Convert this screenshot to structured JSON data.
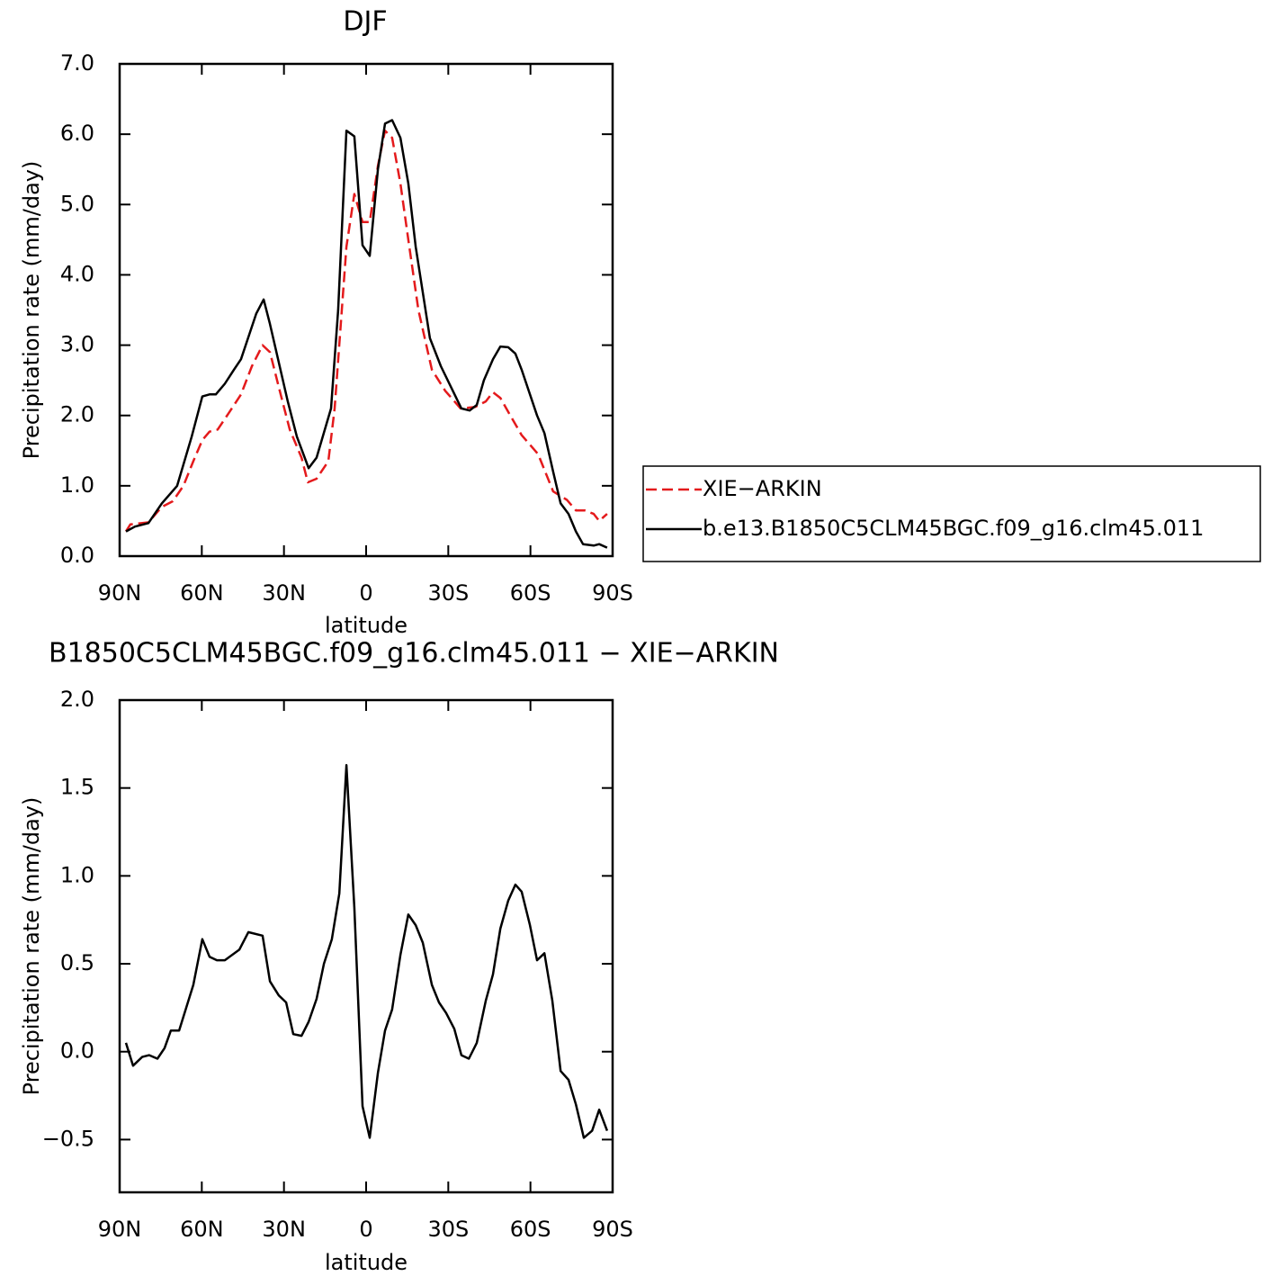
{
  "chart_data": [
    {
      "type": "line",
      "title": "DJF",
      "xlabel": "latitude",
      "ylabel": "Precipitation rate (mm/day)",
      "xlim": [
        90,
        -90
      ],
      "ylim": [
        0,
        7
      ],
      "xticks": [
        {
          "value": 90,
          "label": "90N"
        },
        {
          "value": 60,
          "label": "60N"
        },
        {
          "value": 30,
          "label": "30N"
        },
        0,
        {
          "value": -30,
          "label": "30S"
        },
        {
          "value": -60,
          "label": "60S"
        },
        {
          "value": -90,
          "label": "90S"
        }
      ],
      "yticks": [
        {
          "value": 0,
          "label": "0.0"
        },
        {
          "value": 1,
          "label": "1.0"
        },
        {
          "value": 2,
          "label": "2.0"
        },
        {
          "value": 3,
          "label": "3.0"
        },
        {
          "value": 4,
          "label": "4.0"
        },
        {
          "value": 5,
          "label": "5.0"
        },
        {
          "value": 6,
          "label": "6.0"
        },
        {
          "value": 7,
          "label": "7.0"
        }
      ],
      "legend": "right",
      "series": [
        {
          "name": "XIE−ARKIN",
          "color": "#e41a1c",
          "dash": true,
          "x": [
            87.7,
            86.1,
            79.5,
            74.6,
            70.6,
            66.7,
            63.1,
            59.8,
            57.2,
            54.2,
            49.9,
            45.7,
            41.7,
            37.8,
            35.1,
            31.2,
            27.9,
            23.6,
            21.3,
            18.1,
            13.8,
            11.5,
            7.2,
            4.3,
            1.3,
            -1.3,
            -4.3,
            -6.9,
            -9.5,
            -12.5,
            -15.4,
            -19.1,
            -24,
            -28.9,
            -34.5,
            -39.8,
            -43.7,
            -46.3,
            -49,
            -51.9,
            -56.8,
            -62.8,
            -68.3,
            -73.3,
            -76.6,
            -79.8,
            -83.1,
            -85.1,
            -88
          ],
          "values": [
            0.35,
            0.45,
            0.48,
            0.7,
            0.78,
            1.0,
            1.35,
            1.65,
            1.77,
            1.8,
            2.05,
            2.3,
            2.7,
            3.0,
            2.9,
            2.3,
            1.8,
            1.4,
            1.05,
            1.1,
            1.35,
            2.1,
            4.4,
            5.15,
            4.75,
            4.75,
            5.55,
            6.05,
            5.95,
            5.3,
            4.5,
            3.5,
            2.65,
            2.35,
            2.1,
            2.12,
            2.2,
            2.33,
            2.25,
            2.05,
            1.72,
            1.45,
            0.92,
            0.8,
            0.65,
            0.65,
            0.6,
            0.5,
            0.6
          ]
        },
        {
          "name": "b.e13.B1850C5CLM45BGC.f09_g16.clm45.011",
          "color": "#000000",
          "dash": false,
          "x": [
            87.7,
            84.4,
            79.5,
            74.6,
            69,
            63.7,
            59.8,
            57.2,
            54.9,
            51.6,
            48.3,
            45.7,
            40.1,
            37.4,
            35.1,
            28.6,
            25.3,
            21,
            18.1,
            12.8,
            10.2,
            7.2,
            4.3,
            1.3,
            -1.3,
            -4.3,
            -6.9,
            -9.5,
            -12.5,
            -15.4,
            -18.1,
            -23.3,
            -27.3,
            -34.8,
            -37.8,
            -40.4,
            -43,
            -46.3,
            -49,
            -51.9,
            -54.5,
            -56.8,
            -62.4,
            -65.1,
            -68.3,
            -71,
            -73.9,
            -76.6,
            -79.2,
            -83.1,
            -85.1,
            -88
          ],
          "values": [
            0.35,
            0.42,
            0.47,
            0.75,
            1.0,
            1.7,
            2.27,
            2.3,
            2.3,
            2.45,
            2.65,
            2.8,
            3.45,
            3.65,
            3.3,
            2.2,
            1.7,
            1.25,
            1.4,
            2.1,
            3.5,
            6.05,
            5.97,
            4.42,
            4.27,
            5.5,
            6.15,
            6.2,
            5.95,
            5.3,
            4.4,
            3.1,
            2.7,
            2.1,
            2.07,
            2.15,
            2.5,
            2.8,
            2.98,
            2.97,
            2.88,
            2.65,
            2.0,
            1.75,
            1.2,
            0.75,
            0.6,
            0.35,
            0.17,
            0.15,
            0.17,
            0.12
          ]
        }
      ]
    },
    {
      "type": "line",
      "title": "B1850C5CLM45BGC.f09_g16.clm45.011 − XIE−ARKIN",
      "xlabel": "latitude",
      "ylabel": "Precipitation rate (mm/day)",
      "xlim": [
        90,
        -90
      ],
      "ylim": [
        -0.8,
        2.0
      ],
      "xticks": [
        {
          "value": 90,
          "label": "90N"
        },
        {
          "value": 60,
          "label": "60N"
        },
        {
          "value": 30,
          "label": "30N"
        },
        0,
        {
          "value": -30,
          "label": "30S"
        },
        {
          "value": -60,
          "label": "60S"
        },
        {
          "value": -90,
          "label": "90S"
        }
      ],
      "yticks": [
        {
          "value": -0.5,
          "label": "−0.5"
        },
        {
          "value": 0,
          "label": "0.0"
        },
        0.5,
        {
          "value": 1,
          "label": "1.0"
        },
        1.5,
        {
          "value": 2,
          "label": "2.0"
        }
      ],
      "color": "#000000",
      "x": [
        87.7,
        85.1,
        81.8,
        79.2,
        76.2,
        73.6,
        71.3,
        68.3,
        63.1,
        59.8,
        57.2,
        54.5,
        51.6,
        46.3,
        43,
        37.8,
        35.1,
        31.9,
        29.2,
        26.6,
        23.6,
        21,
        18.1,
        15.4,
        12.5,
        9.8,
        7.2,
        4.3,
        1.3,
        -1.3,
        -4.3,
        -6.9,
        -9.5,
        -12.5,
        -15.4,
        -18.1,
        -20.7,
        -24,
        -26.6,
        -29.2,
        -32.2,
        -34.8,
        -37.5,
        -40.4,
        -43.7,
        -46.3,
        -49,
        -51.9,
        -54.5,
        -56.8,
        -59.8,
        -62.4,
        -65.1,
        -68,
        -71,
        -73.9,
        -76.6,
        -79.5,
        -82.5,
        -85.1,
        -88
      ],
      "values": [
        0.05,
        -0.08,
        -0.03,
        -0.02,
        -0.04,
        0.02,
        0.12,
        0.12,
        0.38,
        0.64,
        0.54,
        0.52,
        0.52,
        0.58,
        0.68,
        0.66,
        0.4,
        0.32,
        0.28,
        0.1,
        0.09,
        0.17,
        0.3,
        0.5,
        0.64,
        0.9,
        1.63,
        0.82,
        -0.31,
        -0.49,
        -0.12,
        0.12,
        0.24,
        0.55,
        0.78,
        0.72,
        0.62,
        0.38,
        0.28,
        0.22,
        0.13,
        -0.02,
        -0.04,
        0.05,
        0.29,
        0.44,
        0.7,
        0.86,
        0.95,
        0.91,
        0.72,
        0.52,
        0.56,
        0.29,
        -0.11,
        -0.16,
        -0.3,
        -0.49,
        -0.45,
        -0.33,
        -0.45
      ]
    }
  ]
}
